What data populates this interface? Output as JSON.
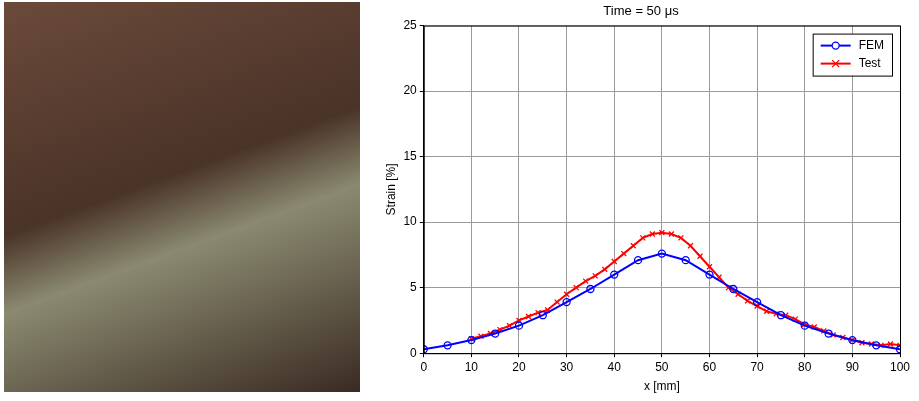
{
  "chart_data": {
    "type": "line",
    "title": "Time = 50 μs",
    "x_label": "x [mm]",
    "y_label": "Strain [%]",
    "series": [
      {
        "name": "FEM",
        "color": "#0000ff",
        "marker": "circle",
        "line_style": "solid",
        "x": [
          0,
          5,
          10,
          15,
          20,
          25,
          30,
          35,
          40,
          45,
          50,
          55,
          60,
          65,
          70,
          75,
          80,
          85,
          90,
          95,
          100
        ],
        "values": [
          0.3,
          0.6,
          1.0,
          1.5,
          2.1,
          2.9,
          3.9,
          4.9,
          6.0,
          7.1,
          7.6,
          7.1,
          6.0,
          4.9,
          3.9,
          2.9,
          2.1,
          1.5,
          1.0,
          0.6,
          0.3
        ]
      },
      {
        "name": "Test",
        "color": "#ff0000",
        "marker": "x",
        "line_style": "solid",
        "x": [
          10,
          12,
          14,
          16,
          18,
          20,
          22,
          24,
          26,
          28,
          30,
          32,
          34,
          36,
          38,
          40,
          42,
          44,
          46,
          48,
          50,
          52,
          54,
          56,
          58,
          60,
          62,
          64,
          66,
          68,
          70,
          72,
          74,
          76,
          78,
          80,
          82,
          84,
          86,
          88,
          90,
          92,
          94,
          96,
          98,
          100
        ],
        "values": [
          1.1,
          1.3,
          1.5,
          1.8,
          2.1,
          2.5,
          2.8,
          3.1,
          3.3,
          3.9,
          4.5,
          5.0,
          5.5,
          5.9,
          6.4,
          7.0,
          7.6,
          8.2,
          8.8,
          9.1,
          9.2,
          9.1,
          8.8,
          8.2,
          7.4,
          6.6,
          5.8,
          5.0,
          4.5,
          4.0,
          3.6,
          3.2,
          3.0,
          2.9,
          2.6,
          2.2,
          2.0,
          1.7,
          1.4,
          1.2,
          1.0,
          0.8,
          0.7,
          0.6,
          0.7,
          0.6
        ]
      }
    ],
    "xlim": [
      0,
      100
    ],
    "xticks": [
      0,
      10,
      20,
      30,
      40,
      50,
      60,
      70,
      80,
      90,
      100
    ],
    "ylim": [
      0,
      25
    ],
    "yticks": [
      0,
      5,
      10,
      15,
      20,
      25
    ],
    "grid": true,
    "legend": "top right"
  }
}
